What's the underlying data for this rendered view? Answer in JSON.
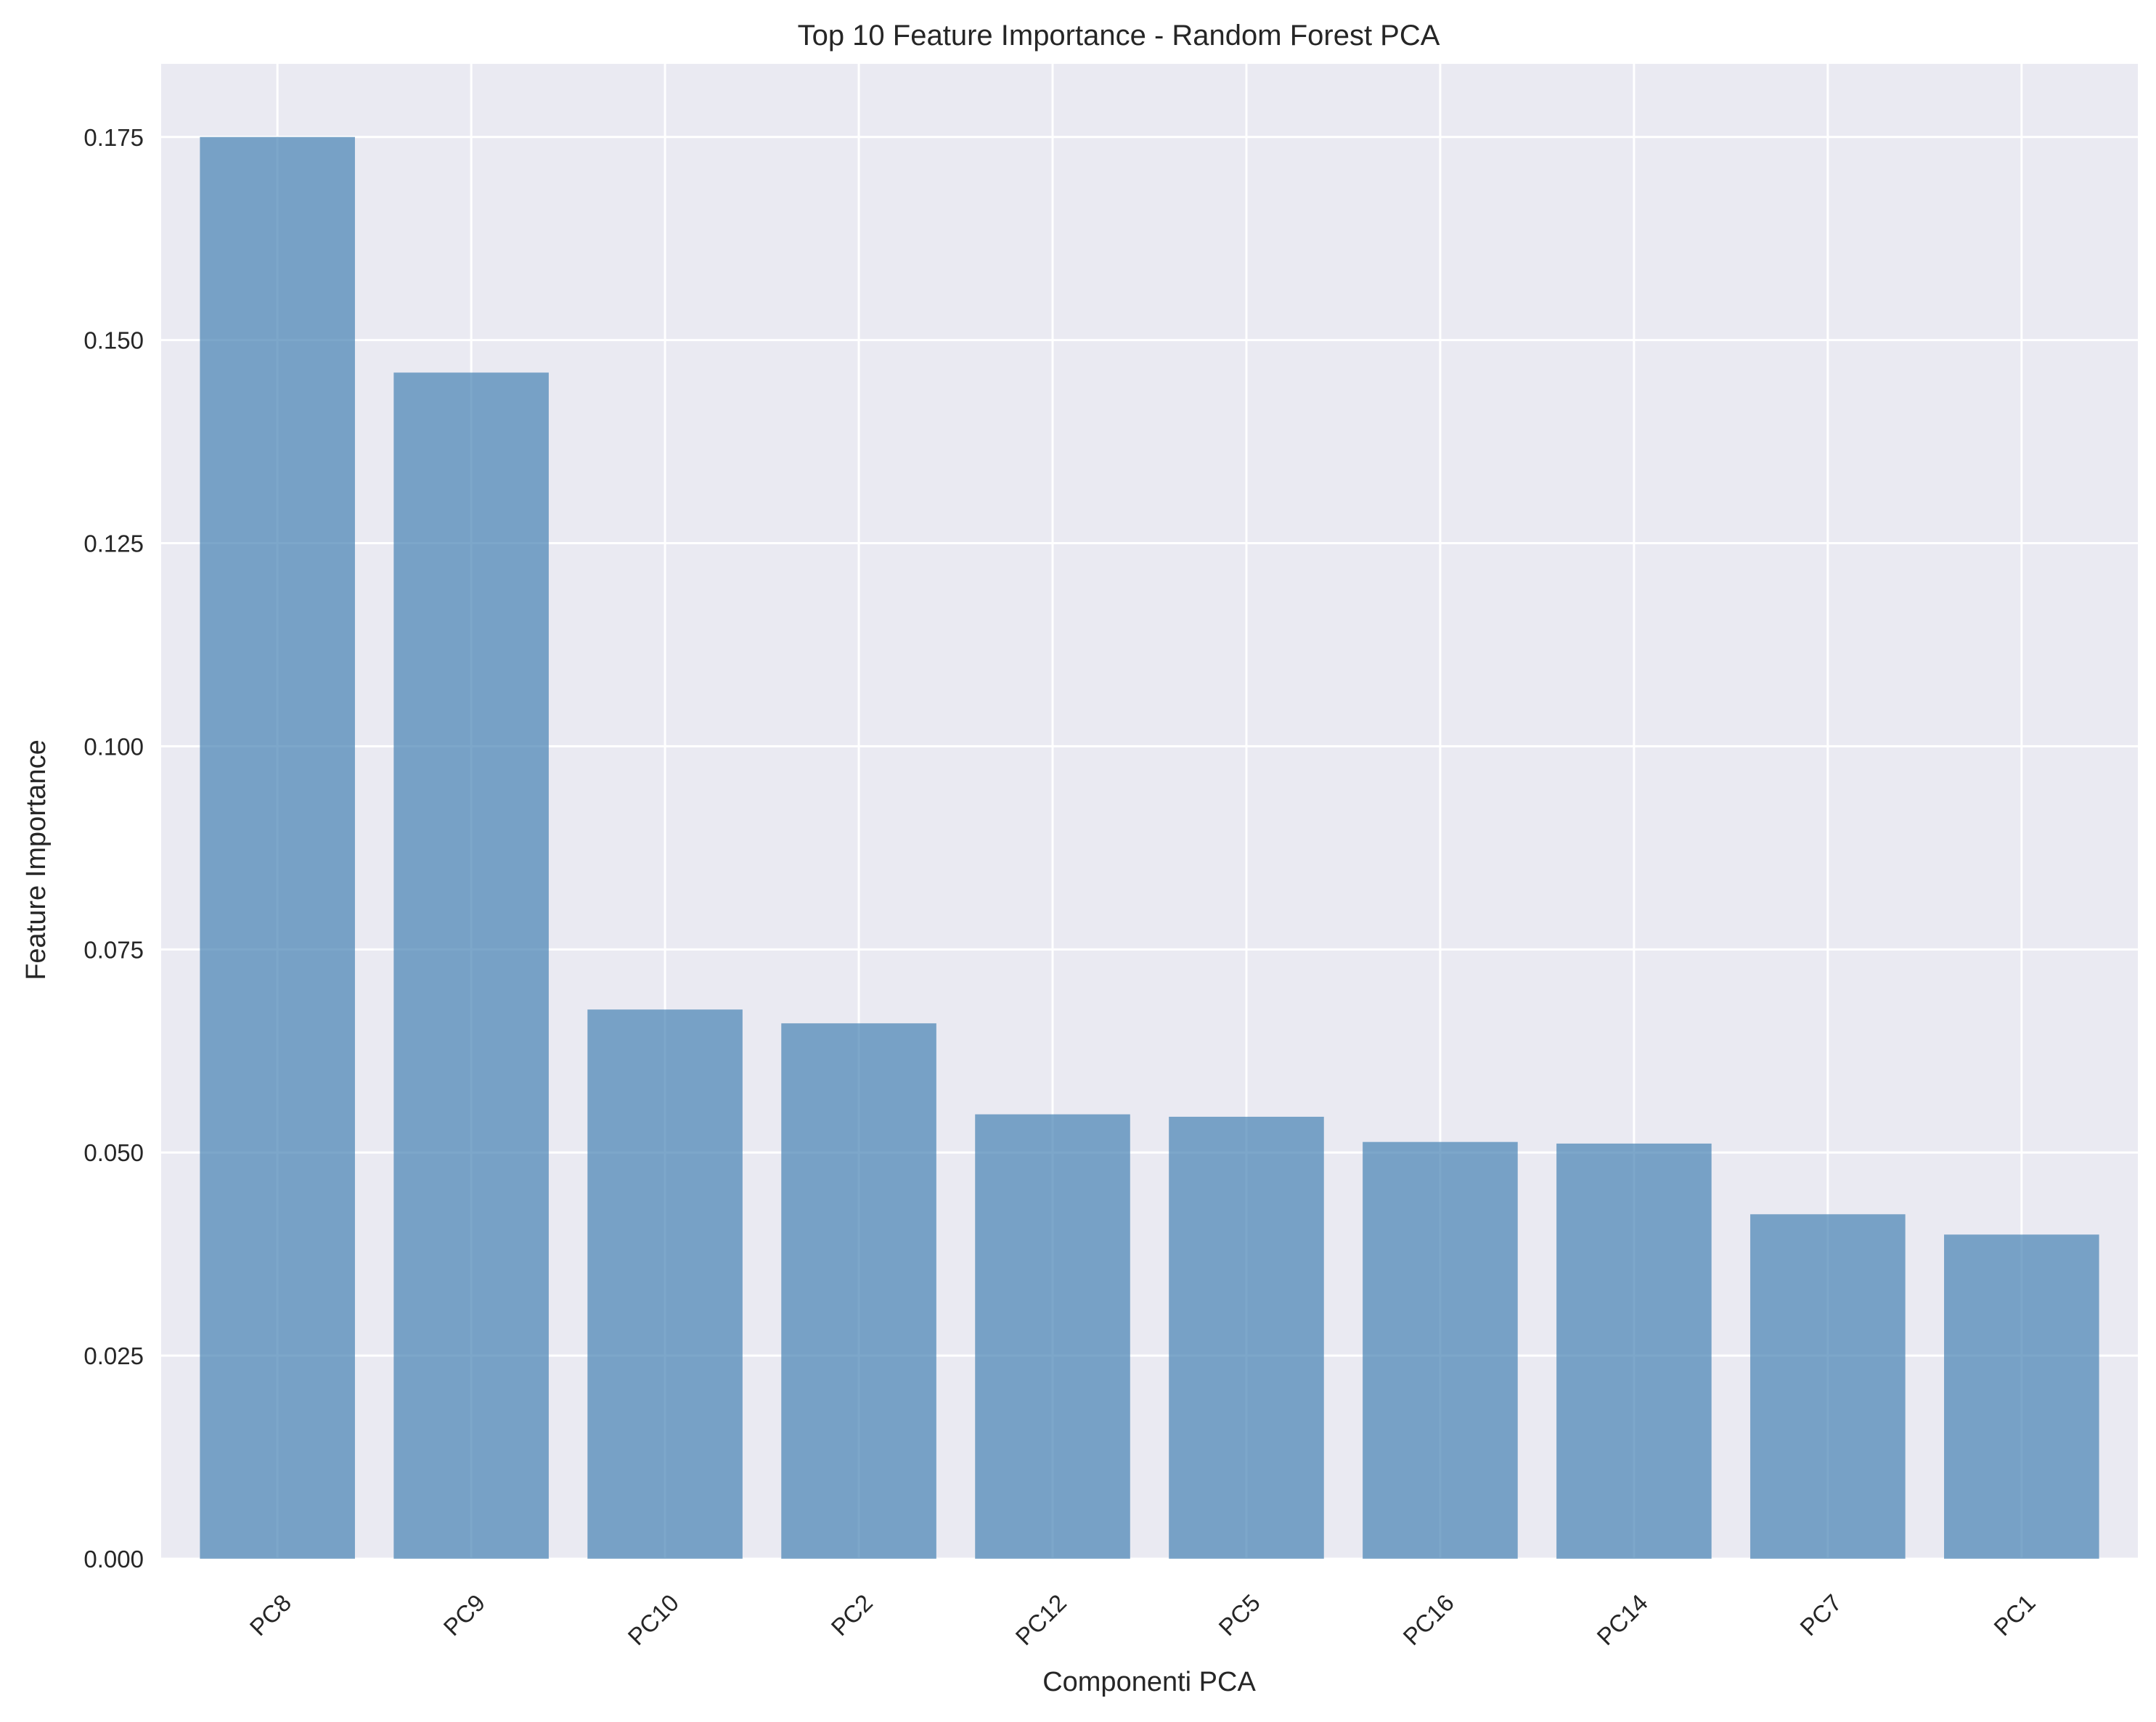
{
  "chart_data": {
    "type": "bar",
    "title": "Top 10 Feature Importance - Random Forest PCA",
    "xlabel": "Componenti PCA",
    "ylabel": "Feature Importance",
    "categories": [
      "PC8",
      "PC9",
      "PC10",
      "PC2",
      "PC12",
      "PC5",
      "PC16",
      "PC14",
      "PC7",
      "PC1"
    ],
    "values": [
      0.175,
      0.146,
      0.0676,
      0.0659,
      0.0547,
      0.0544,
      0.0513,
      0.0511,
      0.0424,
      0.0399
    ],
    "ylim": [
      0,
      0.184
    ],
    "yticks": [
      0.0,
      0.025,
      0.05,
      0.075,
      0.1,
      0.125,
      0.15,
      0.175
    ],
    "ytick_labels": [
      "0.000",
      "0.025",
      "0.050",
      "0.075",
      "0.100",
      "0.125",
      "0.150",
      "0.175"
    ],
    "grid": true,
    "xtick_rotation_deg": 45,
    "colors": {
      "bar": "#4682b4",
      "bar_opacity": 0.7,
      "plot_background": "#eaeaf2",
      "grid": "#ffffff",
      "text": "#262626"
    }
  }
}
